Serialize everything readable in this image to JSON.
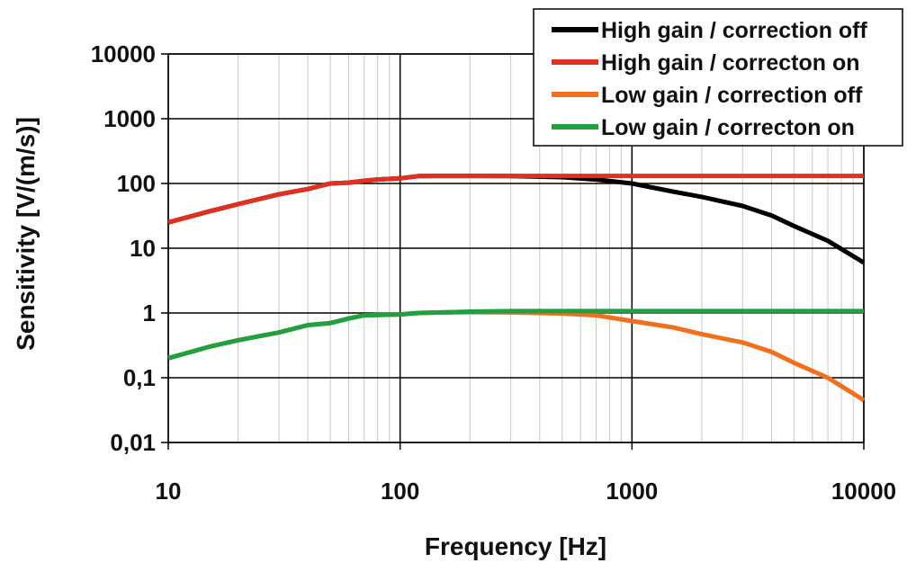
{
  "chart_data": {
    "type": "line",
    "title": "",
    "xlabel": "Frequency [Hz]",
    "ylabel": "Sensitivity [V/(m/s)]",
    "xscale": "log",
    "yscale": "log",
    "xlim": [
      10,
      10000
    ],
    "ylim": [
      0.01,
      10000
    ],
    "x_ticks": [
      10,
      100,
      1000,
      10000
    ],
    "x_tick_labels": [
      "10",
      "100",
      "1000",
      "10000"
    ],
    "y_ticks": [
      0.01,
      0.1,
      1,
      10,
      100,
      1000,
      10000
    ],
    "y_tick_labels": [
      "0,01",
      "0,1",
      "1",
      "10",
      "100",
      "1000",
      "10000"
    ],
    "grid": true,
    "legend_position": "top-right",
    "series": [
      {
        "name": "High gain / correction off",
        "color": "#000000",
        "x": [
          10,
          15,
          20,
          30,
          40,
          50,
          60,
          70,
          80,
          100,
          120,
          150,
          200,
          300,
          500,
          700,
          1000,
          1500,
          2000,
          3000,
          4000,
          5000,
          7000,
          10000
        ],
        "y": [
          25,
          37,
          48,
          68,
          82,
          100,
          103,
          110,
          115,
          120,
          130,
          131,
          131,
          130,
          125,
          115,
          100,
          75,
          62,
          45,
          32,
          22,
          13,
          6
        ]
      },
      {
        "name": "High gain / correcton on",
        "color": "#e03020",
        "x": [
          10,
          15,
          20,
          30,
          40,
          50,
          60,
          70,
          80,
          100,
          120,
          150,
          200,
          300,
          500,
          700,
          1000,
          2000,
          5000,
          10000
        ],
        "y": [
          25,
          37,
          48,
          68,
          82,
          100,
          103,
          110,
          115,
          120,
          130,
          131,
          131,
          131,
          131,
          131,
          131,
          131,
          131,
          131
        ]
      },
      {
        "name": "Low gain / correction off",
        "color": "#f07020",
        "x": [
          10,
          15,
          20,
          30,
          40,
          50,
          60,
          70,
          80,
          100,
          120,
          150,
          200,
          300,
          500,
          700,
          1000,
          1500,
          2000,
          3000,
          4000,
          5000,
          7000,
          10000
        ],
        "y": [
          0.2,
          0.3,
          0.38,
          0.5,
          0.65,
          0.7,
          0.82,
          0.92,
          0.93,
          0.95,
          1.0,
          1.02,
          1.03,
          1.02,
          0.98,
          0.92,
          0.75,
          0.6,
          0.47,
          0.35,
          0.25,
          0.17,
          0.1,
          0.045
        ]
      },
      {
        "name": "Low gain / correcton on",
        "color": "#20a040",
        "x": [
          10,
          15,
          20,
          30,
          40,
          50,
          60,
          70,
          80,
          100,
          120,
          150,
          200,
          300,
          500,
          700,
          1000,
          2000,
          5000,
          10000
        ],
        "y": [
          0.2,
          0.3,
          0.38,
          0.5,
          0.65,
          0.7,
          0.82,
          0.92,
          0.93,
          0.95,
          1.0,
          1.02,
          1.05,
          1.07,
          1.07,
          1.07,
          1.07,
          1.07,
          1.07,
          1.07
        ]
      }
    ]
  }
}
